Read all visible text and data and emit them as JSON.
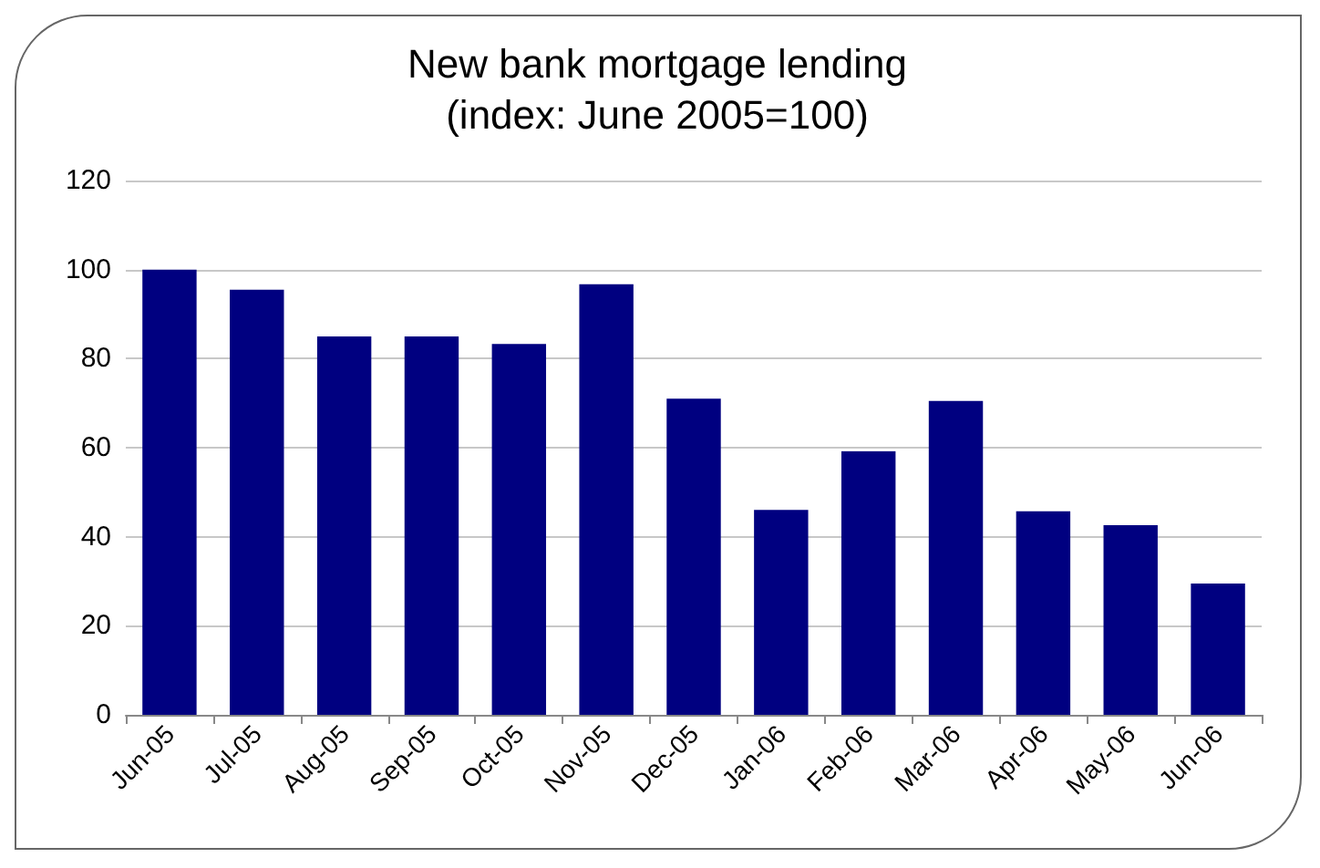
{
  "chart_data": {
    "type": "bar",
    "title": "New bank mortgage lending",
    "subtitle": "(index: June 2005=100)",
    "categories": [
      "Jun-05",
      "Jul-05",
      "Aug-05",
      "Sep-05",
      "Oct-05",
      "Nov-05",
      "Dec-05",
      "Jan-06",
      "Feb-06",
      "Mar-06",
      "Apr-06",
      "May-06",
      "Jun-06"
    ],
    "values": [
      100,
      95.5,
      85,
      85,
      83.3,
      96.7,
      71,
      46,
      59.2,
      70.5,
      45.7,
      42.6,
      29.5
    ],
    "color": "#000080",
    "ylim": [
      0,
      120
    ],
    "yticks": [
      0,
      20,
      40,
      60,
      80,
      100,
      120
    ],
    "grid": "y"
  }
}
